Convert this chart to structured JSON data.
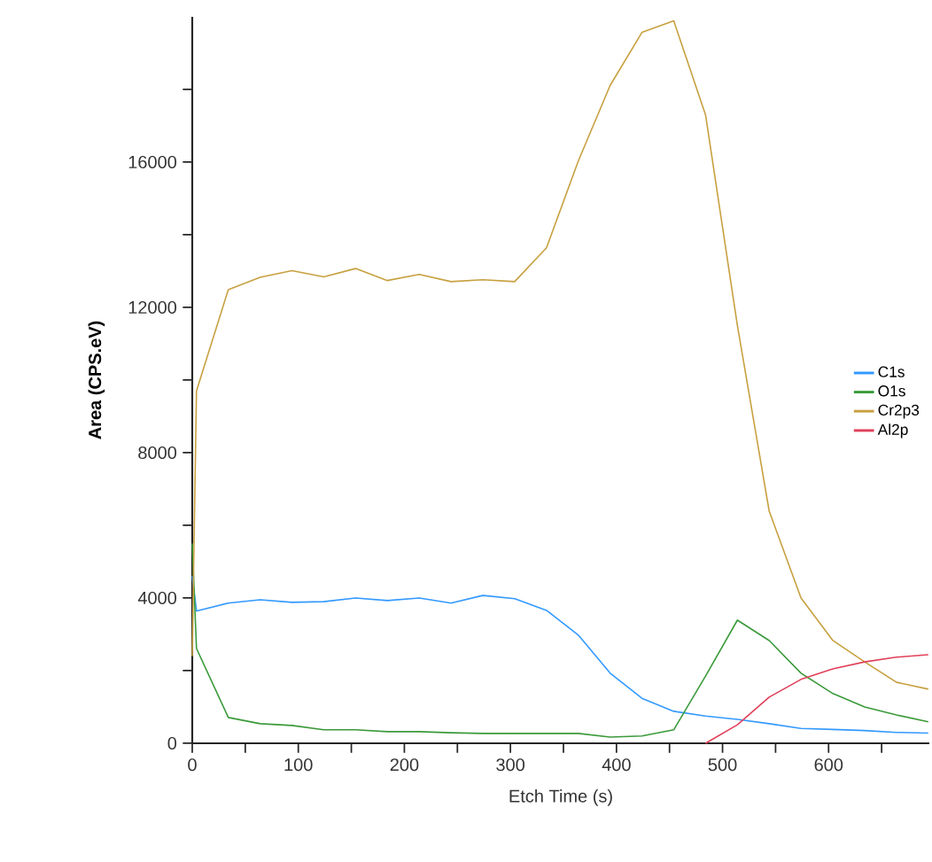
{
  "chart_data": {
    "type": "line",
    "xlabel": "Etch Time (s)",
    "ylabel": "Area (CPS.eV)",
    "x": [
      0,
      4,
      34,
      64,
      94,
      124,
      154,
      184,
      214,
      244,
      274,
      304,
      334,
      364,
      394,
      424,
      454,
      484,
      514,
      544,
      574,
      604,
      634,
      664,
      694
    ],
    "series": [
      {
        "name": "C1s",
        "color": "#3399ff",
        "values": [
          4600,
          3640,
          3860,
          3950,
          3880,
          3900,
          4000,
          3930,
          4000,
          3860,
          4070,
          3980,
          3660,
          2980,
          1930,
          1240,
          880,
          750,
          660,
          540,
          410,
          380,
          350,
          300,
          280
        ]
      },
      {
        "name": "O1s",
        "color": "#3a9a3a",
        "values": [
          5500,
          2610,
          710,
          540,
          490,
          370,
          370,
          320,
          320,
          290,
          270,
          270,
          270,
          270,
          170,
          200,
          370,
          1850,
          3390,
          2830,
          1930,
          1370,
          1000,
          780,
          590
        ]
      },
      {
        "name": "Cr2p3",
        "color": "#c8a040",
        "values": [
          2400,
          9700,
          12490,
          12830,
          13010,
          12840,
          13070,
          12740,
          12910,
          12710,
          12760,
          12710,
          13640,
          16030,
          18110,
          19570,
          19890,
          17300,
          11500,
          6390,
          4000,
          2830,
          2240,
          1680,
          1490
        ]
      },
      {
        "name": "Al2p",
        "color": "#e0405a",
        "values": [
          null,
          null,
          null,
          null,
          null,
          null,
          null,
          null,
          null,
          null,
          null,
          null,
          null,
          null,
          null,
          null,
          null,
          0,
          510,
          1270,
          1760,
          2050,
          2240,
          2370,
          2440
        ]
      }
    ],
    "xlim": [
      0,
      695
    ],
    "ylim": [
      0,
      20000
    ],
    "xticks": [
      0,
      {
        "value": 50,
        "label": null
      },
      100,
      {
        "value": 150,
        "label": null
      },
      200,
      {
        "value": 250,
        "label": null
      },
      300,
      {
        "value": 350,
        "label": null
      },
      400,
      {
        "value": 450,
        "label": null
      },
      500,
      {
        "value": 550,
        "label": null
      },
      600,
      {
        "value": 650,
        "label": null
      }
    ],
    "yticks": [
      0,
      {
        "value": 2000,
        "label": null
      },
      4000,
      {
        "value": 6000,
        "label": null
      },
      8000,
      {
        "value": 10000,
        "label": null
      },
      12000,
      {
        "value": 14000,
        "label": null
      },
      16000,
      {
        "value": 18000,
        "label": null
      }
    ],
    "grid": false,
    "legend": "right",
    "marker": "none",
    "line_style": "solid"
  }
}
